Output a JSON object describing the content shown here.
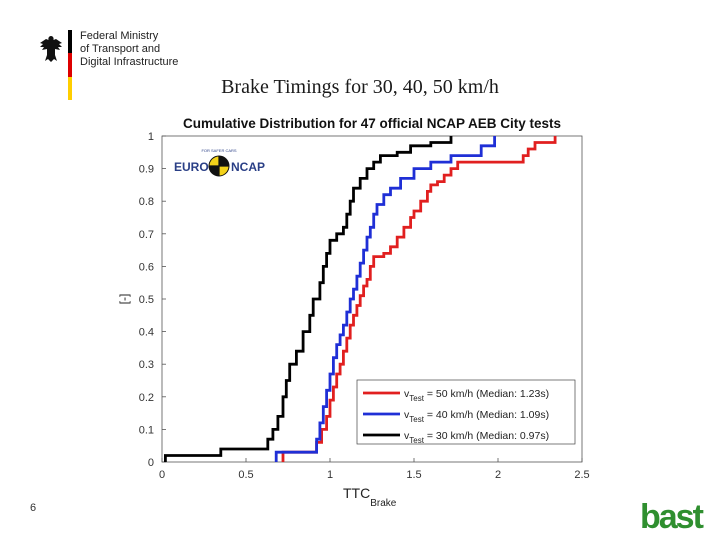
{
  "header": {
    "ministry_lines": [
      "Federal Ministry",
      "of Transport and",
      "Digital Infrastructure"
    ],
    "slide_title": "Brake Timings for 30, 40, 50 km/h",
    "flag_colors": [
      "#000000",
      "#dd0000",
      "#ffce00"
    ]
  },
  "footer": {
    "page_number": "6",
    "logo_text": "bast",
    "logo_color": "#2f8f2f"
  },
  "chart_data": {
    "type": "line",
    "title": "Cumulative Distribution for 47 official NCAP AEB City tests",
    "xlabel": "TTC",
    "xlabel_sub": "Brake",
    "ylabel": "[-]",
    "xlim": [
      0,
      2.5
    ],
    "ylim": [
      0,
      1
    ],
    "xticks": [
      "0",
      "0.5",
      "1",
      "1.5",
      "2",
      "2.5"
    ],
    "yticks": [
      "0",
      "0.1",
      "0.2",
      "0.3",
      "0.4",
      "0.5",
      "0.6",
      "0.7",
      "0.8",
      "0.9",
      "1"
    ],
    "grid": false,
    "legend_position": "bottom-right",
    "logo_text_left": "EURO",
    "logo_text_right": "NCAP",
    "logo_text_ring": "FOR SAFER CARS",
    "series": [
      {
        "legend_prefix": "v",
        "legend_sub": "Test",
        "legend_text": " = 50 km/h (Median: 1.23s)",
        "color": "#e11f1f",
        "points": [
          [
            0.72,
            0
          ],
          [
            0.72,
            0.03
          ],
          [
            0.9,
            0.03
          ],
          [
            0.92,
            0.06
          ],
          [
            0.95,
            0.1
          ],
          [
            0.98,
            0.14
          ],
          [
            1.0,
            0.19
          ],
          [
            1.02,
            0.23
          ],
          [
            1.04,
            0.27
          ],
          [
            1.06,
            0.3
          ],
          [
            1.08,
            0.34
          ],
          [
            1.1,
            0.38
          ],
          [
            1.12,
            0.42
          ],
          [
            1.14,
            0.45
          ],
          [
            1.16,
            0.48
          ],
          [
            1.18,
            0.51
          ],
          [
            1.2,
            0.54
          ],
          [
            1.22,
            0.56
          ],
          [
            1.24,
            0.6
          ],
          [
            1.26,
            0.63
          ],
          [
            1.32,
            0.64
          ],
          [
            1.36,
            0.66
          ],
          [
            1.4,
            0.69
          ],
          [
            1.44,
            0.72
          ],
          [
            1.48,
            0.75
          ],
          [
            1.5,
            0.77
          ],
          [
            1.54,
            0.8
          ],
          [
            1.58,
            0.83
          ],
          [
            1.6,
            0.85
          ],
          [
            1.64,
            0.86
          ],
          [
            1.68,
            0.88
          ],
          [
            1.72,
            0.9
          ],
          [
            1.76,
            0.92
          ],
          [
            2.12,
            0.92
          ],
          [
            2.15,
            0.94
          ],
          [
            2.18,
            0.96
          ],
          [
            2.22,
            0.98
          ],
          [
            2.34,
            0.98
          ],
          [
            2.34,
            1.0
          ]
        ]
      },
      {
        "legend_prefix": "v",
        "legend_sub": "Test",
        "legend_text": " = 40 km/h (Median: 1.09s)",
        "color": "#1f2fd6",
        "points": [
          [
            0.68,
            0
          ],
          [
            0.68,
            0.03
          ],
          [
            0.9,
            0.03
          ],
          [
            0.92,
            0.07
          ],
          [
            0.94,
            0.12
          ],
          [
            0.96,
            0.17
          ],
          [
            0.98,
            0.22
          ],
          [
            1.0,
            0.27
          ],
          [
            1.02,
            0.32
          ],
          [
            1.04,
            0.36
          ],
          [
            1.06,
            0.39
          ],
          [
            1.08,
            0.42
          ],
          [
            1.1,
            0.46
          ],
          [
            1.12,
            0.5
          ],
          [
            1.14,
            0.53
          ],
          [
            1.16,
            0.57
          ],
          [
            1.18,
            0.61
          ],
          [
            1.2,
            0.65
          ],
          [
            1.22,
            0.69
          ],
          [
            1.24,
            0.72
          ],
          [
            1.26,
            0.76
          ],
          [
            1.28,
            0.79
          ],
          [
            1.32,
            0.82
          ],
          [
            1.36,
            0.84
          ],
          [
            1.42,
            0.87
          ],
          [
            1.5,
            0.9
          ],
          [
            1.6,
            0.92
          ],
          [
            1.72,
            0.94
          ],
          [
            1.9,
            0.97
          ],
          [
            1.98,
            0.99
          ],
          [
            1.98,
            1.0
          ]
        ]
      },
      {
        "legend_prefix": "v",
        "legend_sub": "Test",
        "legend_text": " = 30 km/h (Median: 0.97s)",
        "color": "#000000",
        "points": [
          [
            0.02,
            0
          ],
          [
            0.02,
            0.02
          ],
          [
            0.35,
            0.02
          ],
          [
            0.35,
            0.04
          ],
          [
            0.6,
            0.04
          ],
          [
            0.63,
            0.07
          ],
          [
            0.66,
            0.1
          ],
          [
            0.69,
            0.14
          ],
          [
            0.72,
            0.2
          ],
          [
            0.74,
            0.25
          ],
          [
            0.76,
            0.3
          ],
          [
            0.8,
            0.34
          ],
          [
            0.84,
            0.4
          ],
          [
            0.88,
            0.45
          ],
          [
            0.9,
            0.5
          ],
          [
            0.94,
            0.55
          ],
          [
            0.96,
            0.6
          ],
          [
            0.98,
            0.64
          ],
          [
            1.0,
            0.68
          ],
          [
            1.04,
            0.7
          ],
          [
            1.08,
            0.72
          ],
          [
            1.1,
            0.76
          ],
          [
            1.12,
            0.8
          ],
          [
            1.14,
            0.84
          ],
          [
            1.18,
            0.87
          ],
          [
            1.22,
            0.9
          ],
          [
            1.26,
            0.92
          ],
          [
            1.3,
            0.94
          ],
          [
            1.4,
            0.95
          ],
          [
            1.48,
            0.97
          ],
          [
            1.6,
            0.98
          ],
          [
            1.72,
            1.0
          ]
        ]
      }
    ]
  }
}
